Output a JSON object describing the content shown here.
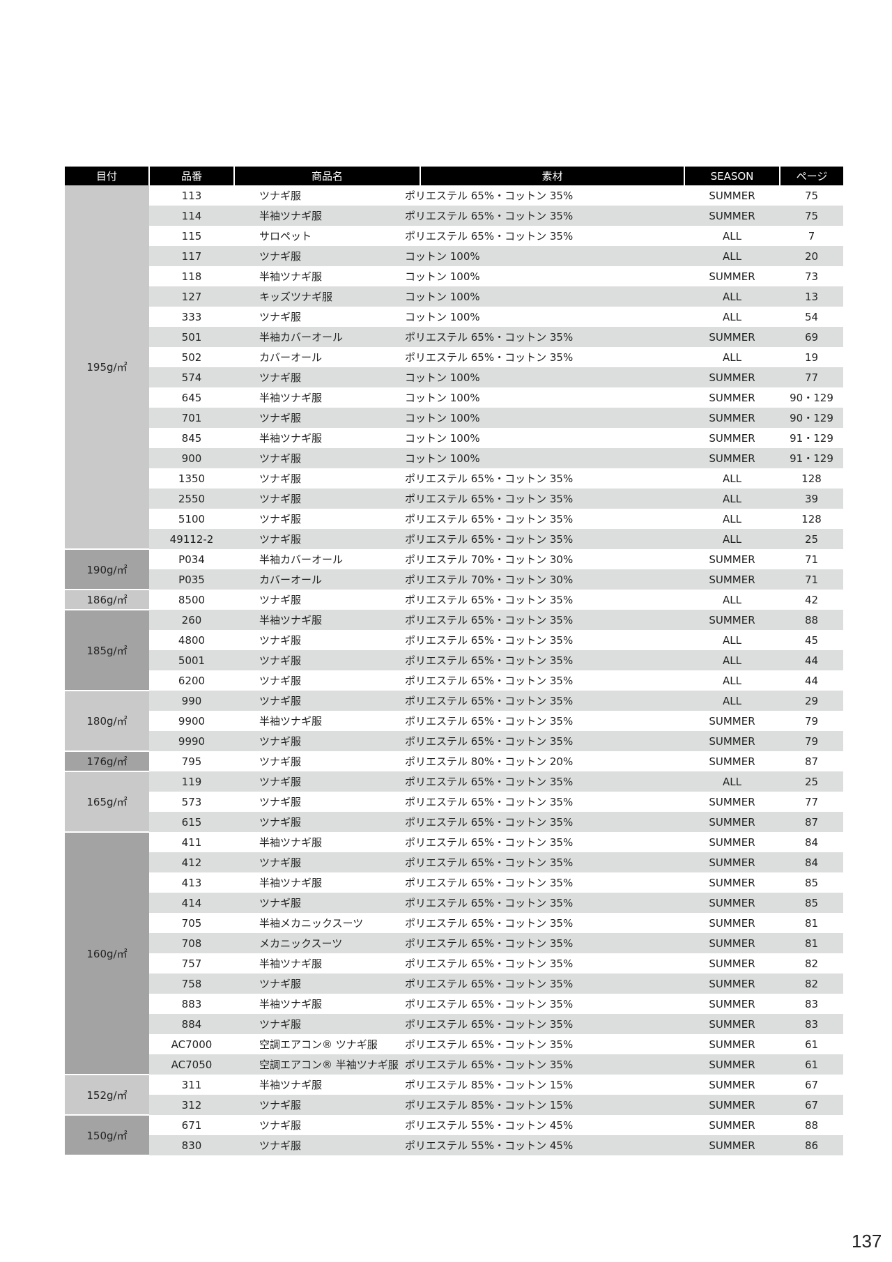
{
  "header": {
    "weight": "目付",
    "code": "品番",
    "name": "商品名",
    "material": "素材",
    "season": "SEASON",
    "page": "ページ"
  },
  "colors": {
    "header_bg": "#000000",
    "stripe": "#dcdddd",
    "group_light": "#c9c9ca",
    "group_dark": "#a3a3a3"
  },
  "groups": [
    {
      "weight": "195g/㎡",
      "tone": "light",
      "items": [
        [
          "113",
          "ツナギ服",
          "ポリエステル 65%・コットン 35%",
          "SUMMER",
          "75"
        ],
        [
          "114",
          "半袖ツナギ服",
          "ポリエステル 65%・コットン 35%",
          "SUMMER",
          "75"
        ],
        [
          "115",
          "サロペット",
          "ポリエステル 65%・コットン 35%",
          "ALL",
          "7"
        ],
        [
          "117",
          "ツナギ服",
          "コットン 100%",
          "ALL",
          "20"
        ],
        [
          "118",
          "半袖ツナギ服",
          "コットン 100%",
          "SUMMER",
          "73"
        ],
        [
          "127",
          "キッズツナギ服",
          "コットン 100%",
          "ALL",
          "13"
        ],
        [
          "333",
          "ツナギ服",
          "コットン 100%",
          "ALL",
          "54"
        ],
        [
          "501",
          "半袖カバーオール",
          "ポリエステル 65%・コットン 35%",
          "SUMMER",
          "69"
        ],
        [
          "502",
          "カバーオール",
          "ポリエステル 65%・コットン 35%",
          "ALL",
          "19"
        ],
        [
          "574",
          "ツナギ服",
          "コットン 100%",
          "SUMMER",
          "77"
        ],
        [
          "645",
          "半袖ツナギ服",
          "コットン 100%",
          "SUMMER",
          "90・129"
        ],
        [
          "701",
          "ツナギ服",
          "コットン 100%",
          "SUMMER",
          "90・129"
        ],
        [
          "845",
          "半袖ツナギ服",
          "コットン 100%",
          "SUMMER",
          "91・129"
        ],
        [
          "900",
          "ツナギ服",
          "コットン 100%",
          "SUMMER",
          "91・129"
        ],
        [
          "1350",
          "ツナギ服",
          "ポリエステル 65%・コットン 35%",
          "ALL",
          "128"
        ],
        [
          "2550",
          "ツナギ服",
          "ポリエステル 65%・コットン 35%",
          "ALL",
          "39"
        ],
        [
          "5100",
          "ツナギ服",
          "ポリエステル 65%・コットン 35%",
          "ALL",
          "128"
        ],
        [
          "49112-2",
          "ツナギ服",
          "ポリエステル 65%・コットン 35%",
          "ALL",
          "25"
        ]
      ]
    },
    {
      "weight": "190g/㎡",
      "tone": "dark",
      "items": [
        [
          "P034",
          "半袖カバーオール",
          "ポリエステル 70%・コットン 30%",
          "SUMMER",
          "71"
        ],
        [
          "P035",
          "カバーオール",
          "ポリエステル 70%・コットン 30%",
          "SUMMER",
          "71"
        ]
      ]
    },
    {
      "weight": "186g/㎡",
      "tone": "light",
      "items": [
        [
          "8500",
          "ツナギ服",
          "ポリエステル 65%・コットン 35%",
          "ALL",
          "42"
        ]
      ]
    },
    {
      "weight": "185g/㎡",
      "tone": "dark",
      "items": [
        [
          "260",
          "半袖ツナギ服",
          "ポリエステル 65%・コットン 35%",
          "SUMMER",
          "88"
        ],
        [
          "4800",
          "ツナギ服",
          "ポリエステル 65%・コットン 35%",
          "ALL",
          "45"
        ],
        [
          "5001",
          "ツナギ服",
          "ポリエステル 65%・コットン 35%",
          "ALL",
          "44"
        ],
        [
          "6200",
          "ツナギ服",
          "ポリエステル 65%・コットン 35%",
          "ALL",
          "44"
        ]
      ]
    },
    {
      "weight": "180g/㎡",
      "tone": "light",
      "items": [
        [
          "990",
          "ツナギ服",
          "ポリエステル 65%・コットン 35%",
          "ALL",
          "29"
        ],
        [
          "9900",
          "半袖ツナギ服",
          "ポリエステル 65%・コットン 35%",
          "SUMMER",
          "79"
        ],
        [
          "9990",
          "ツナギ服",
          "ポリエステル 65%・コットン 35%",
          "SUMMER",
          "79"
        ]
      ]
    },
    {
      "weight": "176g/㎡",
      "tone": "dark",
      "items": [
        [
          "795",
          "ツナギ服",
          "ポリエステル 80%・コットン 20%",
          "SUMMER",
          "87"
        ]
      ]
    },
    {
      "weight": "165g/㎡",
      "tone": "light",
      "items": [
        [
          "119",
          "ツナギ服",
          "ポリエステル 65%・コットン 35%",
          "ALL",
          "25"
        ],
        [
          "573",
          "ツナギ服",
          "ポリエステル 65%・コットン 35%",
          "SUMMER",
          "77"
        ],
        [
          "615",
          "ツナギ服",
          "ポリエステル 65%・コットン 35%",
          "SUMMER",
          "87"
        ]
      ]
    },
    {
      "weight": "160g/㎡",
      "tone": "dark",
      "items": [
        [
          "411",
          "半袖ツナギ服",
          "ポリエステル 65%・コットン 35%",
          "SUMMER",
          "84"
        ],
        [
          "412",
          "ツナギ服",
          "ポリエステル 65%・コットン 35%",
          "SUMMER",
          "84"
        ],
        [
          "413",
          "半袖ツナギ服",
          "ポリエステル 65%・コットン 35%",
          "SUMMER",
          "85"
        ],
        [
          "414",
          "ツナギ服",
          "ポリエステル 65%・コットン 35%",
          "SUMMER",
          "85"
        ],
        [
          "705",
          "半袖メカニックスーツ",
          "ポリエステル 65%・コットン 35%",
          "SUMMER",
          "81"
        ],
        [
          "708",
          "メカニックスーツ",
          "ポリエステル 65%・コットン 35%",
          "SUMMER",
          "81"
        ],
        [
          "757",
          "半袖ツナギ服",
          "ポリエステル 65%・コットン 35%",
          "SUMMER",
          "82"
        ],
        [
          "758",
          "ツナギ服",
          "ポリエステル 65%・コットン 35%",
          "SUMMER",
          "82"
        ],
        [
          "883",
          "半袖ツナギ服",
          "ポリエステル 65%・コットン 35%",
          "SUMMER",
          "83"
        ],
        [
          "884",
          "ツナギ服",
          "ポリエステル 65%・コットン 35%",
          "SUMMER",
          "83"
        ],
        [
          "AC7000",
          "空調エアコン® ツナギ服",
          "ポリエステル 65%・コットン 35%",
          "SUMMER",
          "61"
        ],
        [
          "AC7050",
          "空調エアコン® 半袖ツナギ服",
          "ポリエステル 65%・コットン 35%",
          "SUMMER",
          "61"
        ]
      ]
    },
    {
      "weight": "152g/㎡",
      "tone": "light",
      "items": [
        [
          "311",
          "半袖ツナギ服",
          "ポリエステル 85%・コットン 15%",
          "SUMMER",
          "67"
        ],
        [
          "312",
          "ツナギ服",
          "ポリエステル 85%・コットン 15%",
          "SUMMER",
          "67"
        ]
      ]
    },
    {
      "weight": "150g/㎡",
      "tone": "dark",
      "items": [
        [
          "671",
          "ツナギ服",
          "ポリエステル 55%・コットン 45%",
          "SUMMER",
          "88"
        ],
        [
          "830",
          "ツナギ服",
          "ポリエステル 55%・コットン 45%",
          "SUMMER",
          "86"
        ]
      ]
    }
  ],
  "page_number": "137"
}
